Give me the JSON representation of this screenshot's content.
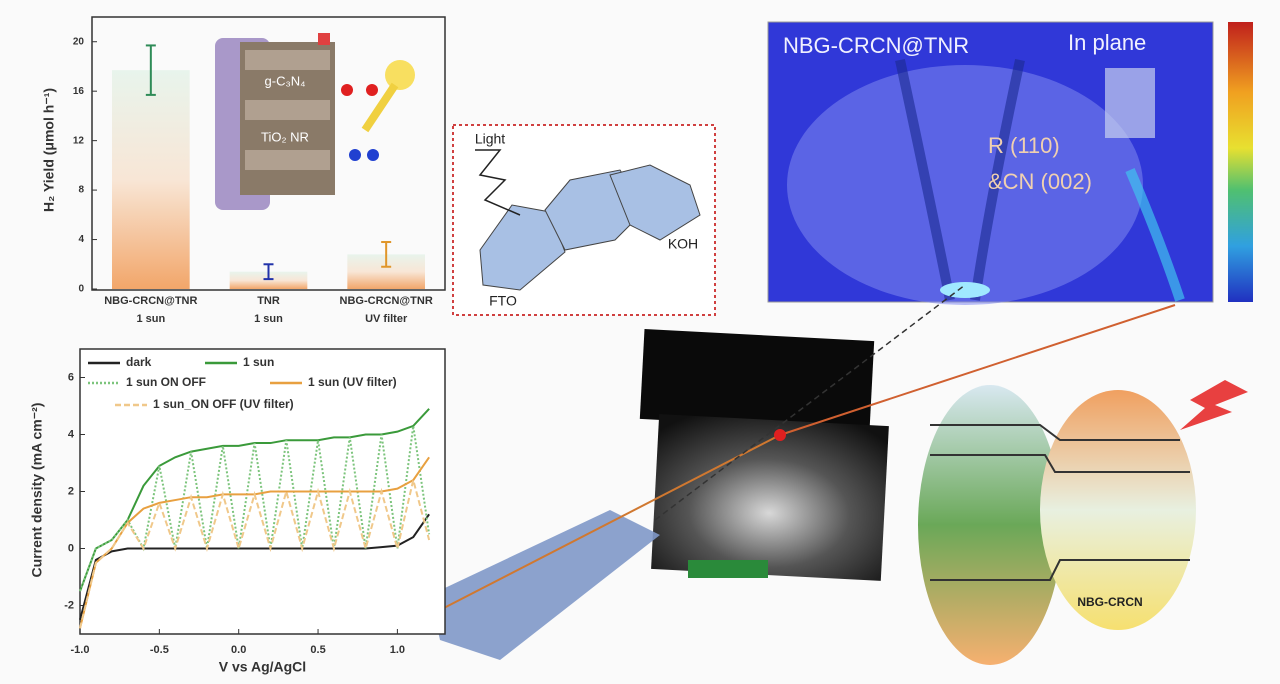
{
  "chart_data": [
    {
      "type": "bar",
      "ylabel": "H₂ Yield (μmol h⁻¹)",
      "categories": [
        "NBG-CRCN@TNR",
        "TNR",
        "NBG-CRCN@TNR"
      ],
      "conditions": [
        "1 sun",
        "1 sun",
        "UV filter"
      ],
      "values": [
        17.7,
        1.4,
        2.8
      ],
      "errors": [
        2.0,
        0.6,
        1.0
      ],
      "color": "#f2a66a",
      "error_colors": [
        "#2e8b57",
        "#2233aa",
        "#e0962a"
      ],
      "ylim": [
        0,
        22
      ],
      "yticks": [
        0,
        4,
        8,
        12,
        16,
        20
      ],
      "grid": false
    },
    {
      "type": "line",
      "xlabel": "V vs Ag/AgCl",
      "ylabel": "Current density (mA cm⁻²)",
      "x": [
        -1.0,
        -0.9,
        -0.8,
        -0.7,
        -0.6,
        -0.5,
        -0.4,
        -0.3,
        -0.2,
        -0.1,
        0,
        0.1,
        0.2,
        0.3,
        0.4,
        0.5,
        0.6,
        0.7,
        0.8,
        0.9,
        1.0,
        1.1,
        1.2
      ],
      "series": [
        {
          "name": "dark",
          "color": "#222222",
          "dash": "solid",
          "values": [
            -2.5,
            -0.4,
            -0.1,
            0,
            0,
            0,
            0,
            0,
            0,
            0,
            0,
            0,
            0,
            0,
            0,
            0,
            0,
            0,
            0,
            0.05,
            0.1,
            0.4,
            1.2
          ]
        },
        {
          "name": "1 sun",
          "color": "#3a9a3a",
          "dash": "solid",
          "values": [
            -1.5,
            0,
            0.3,
            1.0,
            2.2,
            2.9,
            3.2,
            3.4,
            3.5,
            3.6,
            3.6,
            3.7,
            3.7,
            3.8,
            3.8,
            3.8,
            3.9,
            3.9,
            4.0,
            4.0,
            4.1,
            4.3,
            4.9
          ]
        },
        {
          "name": "1 sun ON OFF",
          "color": "#7cc47c",
          "dash": "dotted",
          "values": [
            -1.5,
            0,
            0.3,
            1.0,
            0,
            2.9,
            0,
            3.4,
            0,
            3.6,
            0,
            3.7,
            0,
            3.8,
            0,
            3.8,
            0,
            3.9,
            0,
            4.0,
            0,
            4.3,
            0.5
          ]
        },
        {
          "name": "1 sun (UV filter)",
          "color": "#e8a040",
          "dash": "solid",
          "values": [
            -2.8,
            -0.5,
            0,
            0.9,
            1.4,
            1.6,
            1.7,
            1.8,
            1.8,
            1.9,
            1.9,
            1.9,
            2.0,
            2.0,
            2.0,
            2.0,
            2.0,
            2.0,
            2.0,
            2.0,
            2.1,
            2.4,
            3.2
          ]
        },
        {
          "name": "1 sun_ON OFF (UV filter)",
          "color": "#f0c88a",
          "dash": "dashed",
          "values": [
            -2.8,
            -0.5,
            0,
            0.9,
            0,
            1.6,
            0,
            1.8,
            0,
            1.9,
            0,
            1.9,
            0,
            2.0,
            0,
            2.0,
            0,
            2.0,
            0,
            2.0,
            0,
            2.4,
            0.3
          ]
        }
      ],
      "xlim": [
        -1.0,
        1.3
      ],
      "xticks": [
        {
          "value": -1.0,
          "label": "-1.0"
        },
        -0.5,
        {
          "value": 0,
          "label": "0.0"
        },
        0.5,
        {
          "value": 1.0,
          "label": "1.0"
        }
      ],
      "ylim": [
        -3,
        7
      ],
      "yticks": [
        -2,
        0,
        2,
        4,
        6
      ],
      "legend": "top-left",
      "grid": false
    }
  ],
  "inset": {
    "layers": [
      "g-C₃N₄",
      "TiO₂ NR"
    ]
  },
  "schematic": {
    "light": "Light",
    "electrolyte": "KOH",
    "substrate": "FTO"
  },
  "heatmap": {
    "title": "NBG-CRCN@TNR",
    "label": "In plane",
    "peaks": [
      "R (110)",
      "&CN (002)"
    ]
  },
  "band_diagram": {
    "label": "NBG-CRCN"
  }
}
